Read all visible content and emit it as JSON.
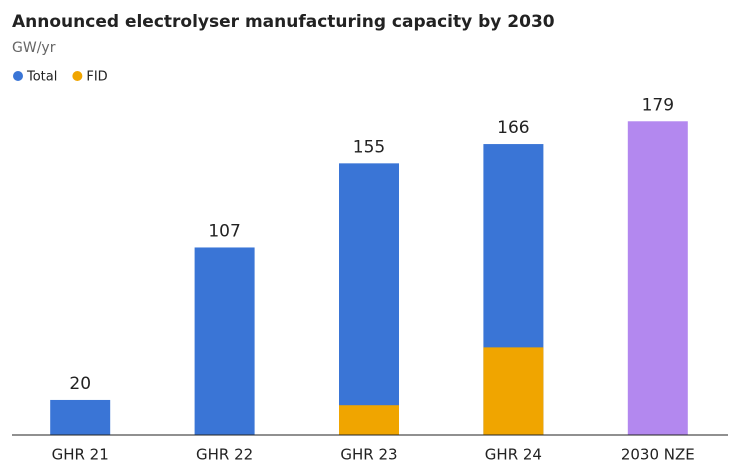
{
  "chart_data": {
    "type": "bar",
    "title": "Announced electrolyser manufacturing capacity by 2030",
    "subtitle": "GW/yr",
    "categories": [
      "GHR 21",
      "GHR 22",
      "GHR 23",
      "GHR 24",
      "2030 NZE"
    ],
    "series": [
      {
        "name": "Total",
        "color": "#3a75d6",
        "values": [
          20,
          107,
          155,
          166,
          179
        ],
        "point_colors": [
          "#3a75d6",
          "#3a75d6",
          "#3a75d6",
          "#3a75d6",
          "#b388ef"
        ]
      },
      {
        "name": "FID",
        "color": "#f0a500",
        "values": [
          null,
          null,
          17,
          50,
          null
        ]
      }
    ],
    "ylim": [
      0,
      190
    ],
    "legend": "top-left"
  }
}
